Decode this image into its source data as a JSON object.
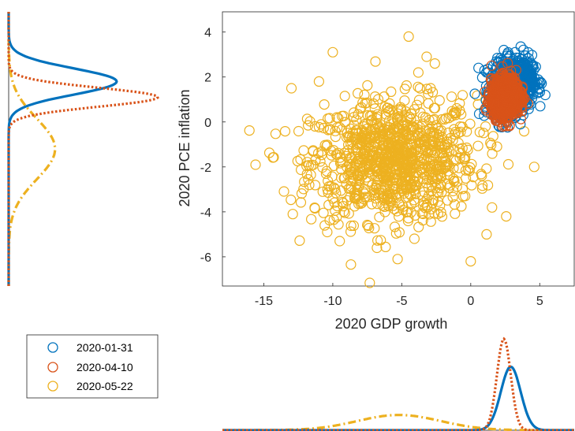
{
  "chart_data": {
    "type": "scatter",
    "title": "",
    "xlabel": "2020 GDP growth",
    "ylabel": "2020 PCE inflation",
    "xlim": [
      -18,
      7.5
    ],
    "ylim": [
      -7.3,
      4.9
    ],
    "xticks": [
      -15,
      -10,
      -5,
      0,
      5
    ],
    "yticks": [
      -6,
      -4,
      -2,
      0,
      2,
      4
    ],
    "grid": false,
    "legend_position": "bottom-left",
    "series": [
      {
        "name": "2020-05-22",
        "color": "#EDB120",
        "marker": "open-circle",
        "n_points": 1000,
        "center": [
          -5.6,
          -1.7
        ],
        "spread": [
          3.0,
          1.35
        ],
        "corr": 0.05,
        "sample_points": [
          [
            -15.6,
            -1.9
          ],
          [
            -13.0,
            1.5
          ],
          [
            -11.0,
            1.8
          ],
          [
            -10.0,
            3.1
          ],
          [
            -4.5,
            3.8
          ],
          [
            -3.8,
            2.2
          ],
          [
            -2.6,
            2.6
          ],
          [
            -3.2,
            2.9
          ],
          [
            1.9,
            -1.1
          ],
          [
            4.6,
            -2.0
          ],
          [
            0.0,
            -6.2
          ],
          [
            -5.3,
            -6.1
          ],
          [
            -12.9,
            -4.1
          ],
          [
            -10.4,
            -4.9
          ],
          [
            -9.5,
            -5.3
          ],
          [
            -6.8,
            -5.6
          ],
          [
            -8.2,
            -2.4
          ],
          [
            -3.0,
            -0.5
          ],
          [
            -6.0,
            -1.8
          ],
          [
            -4.0,
            -3.2
          ]
        ],
        "marginal_x": {
          "peak_x": -5.2,
          "style": "dash-dot"
        },
        "marginal_y": {
          "peak_y": -1.2,
          "style": "dash-dot"
        }
      },
      {
        "name": "2020-01-31",
        "color": "#0072BD",
        "marker": "open-circle",
        "n_points": 1000,
        "center": [
          3.0,
          1.6
        ],
        "spread": [
          0.72,
          0.58
        ],
        "corr": 0.2,
        "sample_points": [
          [
            2.4,
            3.2
          ],
          [
            5.4,
            1.2
          ],
          [
            3.6,
            -0.1
          ],
          [
            1.0,
            2.3
          ]
        ],
        "marginal_x": {
          "peak_x": 2.9,
          "style": "solid"
        },
        "marginal_y": {
          "peak_y": 1.8,
          "style": "solid"
        }
      },
      {
        "name": "2020-04-10",
        "color": "#D95319",
        "marker": "open-circle",
        "n_points": 1000,
        "center": [
          2.5,
          1.1
        ],
        "spread": [
          0.5,
          0.42
        ],
        "corr": 0.1,
        "sample_points": [
          [
            1.3,
            0.9
          ],
          [
            2.3,
            -0.2
          ],
          [
            3.4,
            0.4
          ]
        ],
        "marginal_x": {
          "peak_x": 2.4,
          "style": "dotted"
        },
        "marginal_y": {
          "peak_y": 1.1,
          "style": "dotted"
        }
      }
    ],
    "legend": {
      "entries": [
        {
          "label": "2020-01-31",
          "color": "#0072BD"
        },
        {
          "label": "2020-04-10",
          "color": "#D95319"
        },
        {
          "label": "2020-05-22",
          "color": "#EDB120"
        }
      ]
    }
  }
}
